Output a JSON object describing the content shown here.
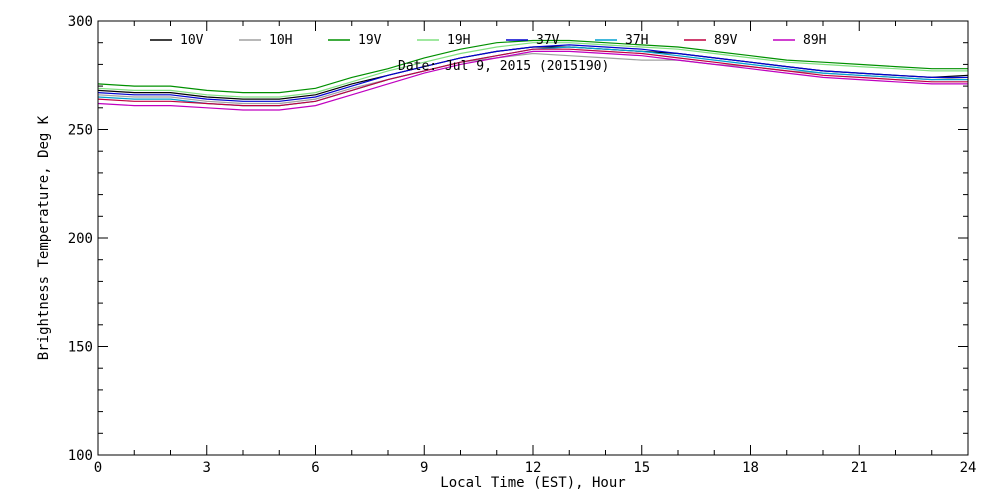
{
  "chart_data": {
    "type": "line",
    "title": "Date: Jul  9, 2015 (2015190)",
    "xlabel": "Local Time (EST), Hour",
    "ylabel": "Brightness Temperature, Deg K",
    "xlim": [
      0,
      24
    ],
    "ylim": [
      100,
      300
    ],
    "xticks": [
      0,
      3,
      6,
      9,
      12,
      15,
      18,
      21,
      24
    ],
    "yticks": [
      100,
      150,
      200,
      250,
      300
    ],
    "grid": false,
    "legend": "top",
    "x": [
      0,
      1,
      2,
      3,
      4,
      5,
      6,
      7,
      8,
      9,
      10,
      11,
      12,
      13,
      14,
      15,
      16,
      17,
      18,
      19,
      20,
      21,
      22,
      23,
      24
    ],
    "series": [
      {
        "name": "10V",
        "color": "#000000",
        "values": [
          268,
          267,
          267,
          265,
          264,
          264,
          266,
          271,
          275,
          279,
          283,
          286,
          288,
          288,
          287,
          286,
          285,
          283,
          281,
          279,
          277,
          276,
          275,
          274,
          275
        ]
      },
      {
        "name": "10H",
        "color": "#a0a0a0",
        "values": [
          266,
          265,
          265,
          263,
          262,
          262,
          264,
          269,
          273,
          277,
          281,
          283,
          285,
          284,
          283,
          282,
          282,
          280,
          279,
          277,
          276,
          275,
          274,
          273,
          274
        ]
      },
      {
        "name": "19V",
        "color": "#009000",
        "values": [
          271,
          270,
          270,
          268,
          267,
          267,
          269,
          274,
          278,
          283,
          287,
          290,
          291,
          291,
          290,
          289,
          288,
          286,
          284,
          282,
          281,
          280,
          279,
          278,
          278
        ]
      },
      {
        "name": "19H",
        "color": "#80e080",
        "values": [
          269,
          268,
          268,
          266,
          265,
          265,
          267,
          272,
          277,
          281,
          285,
          288,
          290,
          290,
          289,
          288,
          287,
          285,
          283,
          281,
          280,
          279,
          278,
          277,
          277
        ]
      },
      {
        "name": "37V",
        "color": "#0000d0",
        "values": [
          267,
          266,
          266,
          264,
          263,
          263,
          265,
          270,
          275,
          279,
          283,
          286,
          288,
          289,
          288,
          287,
          285,
          283,
          281,
          279,
          277,
          276,
          275,
          274,
          274
        ]
      },
      {
        "name": "37H",
        "color": "#00a0d0",
        "values": [
          265,
          264,
          264,
          262,
          261,
          261,
          263,
          268,
          273,
          277,
          281,
          284,
          287,
          288,
          287,
          286,
          284,
          282,
          280,
          278,
          276,
          275,
          274,
          273,
          273
        ]
      },
      {
        "name": "89V",
        "color": "#c00040",
        "values": [
          264,
          263,
          263,
          262,
          261,
          261,
          263,
          268,
          273,
          277,
          281,
          284,
          287,
          287,
          286,
          285,
          283,
          281,
          279,
          277,
          275,
          274,
          273,
          272,
          272
        ]
      },
      {
        "name": "89H",
        "color": "#c000c0",
        "values": [
          262,
          261,
          261,
          260,
          259,
          259,
          261,
          266,
          271,
          276,
          280,
          283,
          286,
          286,
          285,
          284,
          282,
          280,
          278,
          276,
          274,
          273,
          272,
          271,
          271
        ]
      }
    ]
  }
}
